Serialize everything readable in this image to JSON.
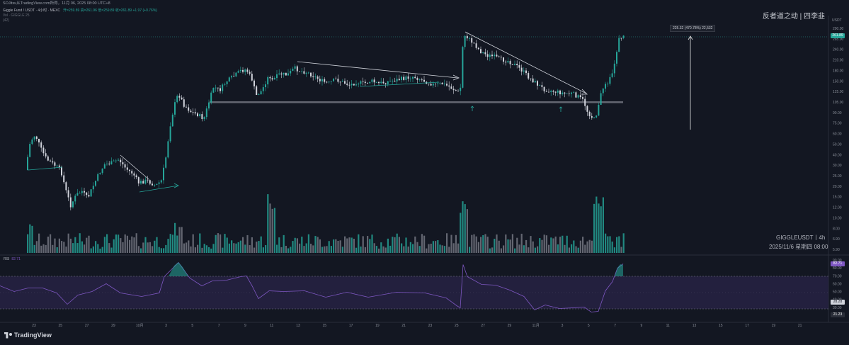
{
  "window": {
    "title_bar": "SOJitsu从TradingView.com所得，11月 06, 2025 08:00 UTC+8"
  },
  "legend": {
    "symbol_line": "Giggle Fund / USDT · 4小时 · MEXC",
    "ohlc": "开=259.89 高=261.96 低=259.89 收=261.89 +1.97 (+0.76%)",
    "vol_line": "Vol · GIGGLE 25",
    "extra": "(42)"
  },
  "watermark_top": "反者道之动 | 四李韭",
  "symbol_label": "GIGGLEUSDT丨4h",
  "date_label": "2025/11/6 星期四 08:00",
  "rsi": {
    "label": "RSI",
    "value": "82.71",
    "tag": "82.71",
    "tag2": "28.28",
    "tag3": "21.23"
  },
  "price_axis": {
    "currency": "USDT",
    "labels": [
      "290.00",
      "265.00",
      "240.00",
      "210.00",
      "180.00",
      "150.00",
      "125.00",
      "105.00",
      "90.00",
      "75.00",
      "60.00",
      "50.00",
      "40.00",
      "30.00",
      "25.00",
      "20.00",
      "15.00",
      "12.00",
      "10.00",
      "8.00",
      "6.90",
      "5.90"
    ],
    "last_price": "261.89",
    "rsi_labels": [
      "90.00",
      "80.00",
      "70.00",
      "60.00",
      "50.00",
      "40.00",
      "30.00",
      "20.00"
    ]
  },
  "time_axis": {
    "labels": [
      "23",
      "25",
      "27",
      "29",
      "10月",
      "3",
      "5",
      "7",
      "9",
      "11",
      "13",
      "15",
      "17",
      "19",
      "21",
      "23",
      "25",
      "27",
      "29",
      "11月",
      "3",
      "5",
      "7",
      "9",
      "11",
      "13",
      "15",
      "17",
      "19",
      "21"
    ]
  },
  "measure": {
    "text": "225.32 (470.78%) 22,532"
  },
  "branding": {
    "name": "TradingView"
  },
  "colors": {
    "up": "#26a69a",
    "down": "#d1d4dc",
    "rsi": "#7e57c2",
    "background": "#131722",
    "volume_up": "#26a69a",
    "volume_down": "#787b86"
  }
}
